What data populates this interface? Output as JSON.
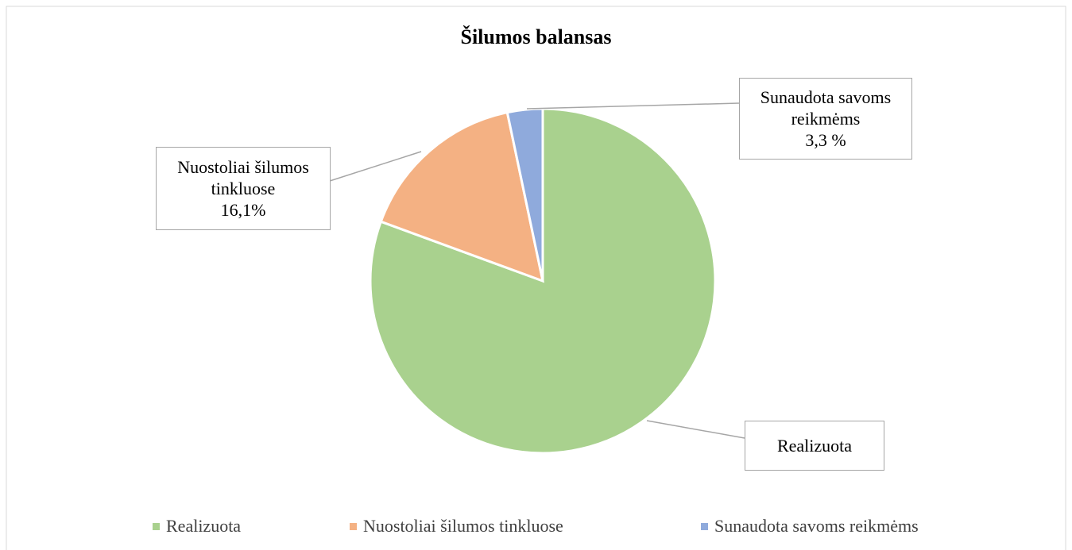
{
  "chart_data": {
    "type": "pie",
    "title": "Šilumos balansas",
    "categories": [
      "Realizuota",
      "Nuostoliai šilumos tinkluose",
      "Sunaudota savoms reikmėms"
    ],
    "values": [
      80.6,
      16.1,
      3.3
    ],
    "value_labels": [
      null,
      "16,1%",
      "3,3 %"
    ],
    "colors": [
      "#a9d18e",
      "#f4b183",
      "#8faadc"
    ],
    "legend": "bottom"
  }
}
